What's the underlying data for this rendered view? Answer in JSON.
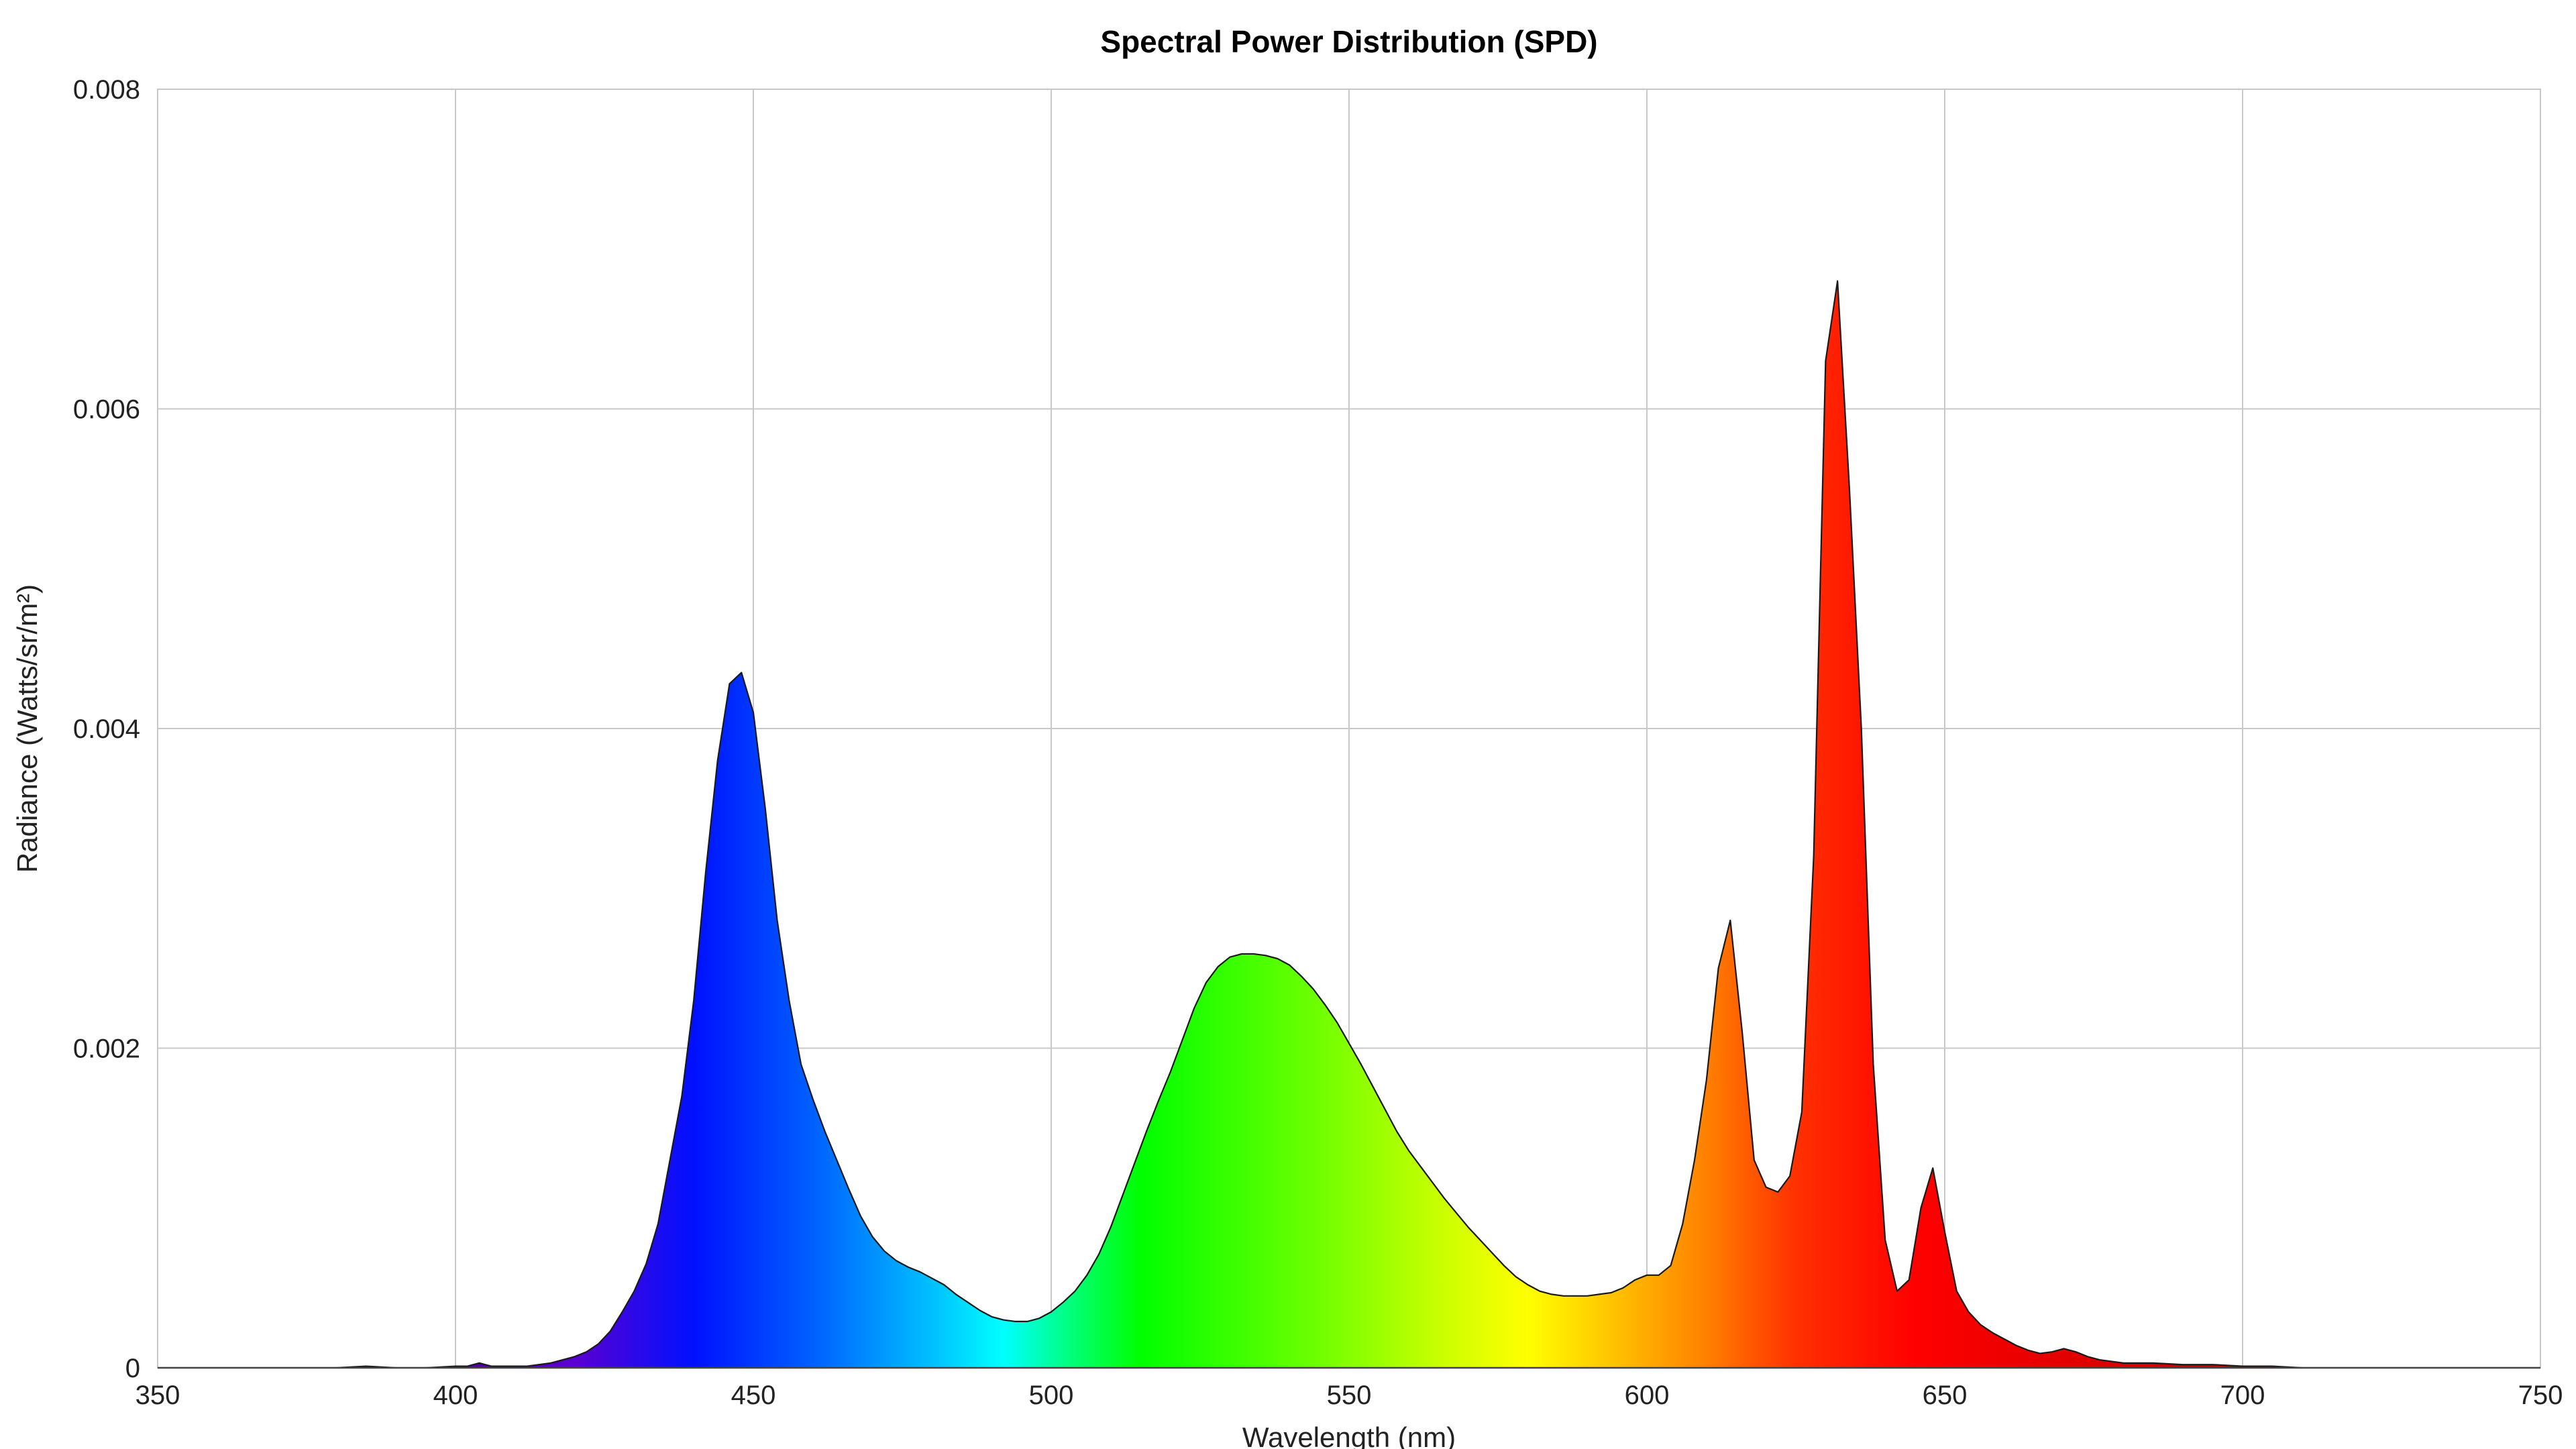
{
  "chart_data": {
    "type": "area",
    "title": "Spectral Power Distribution (SPD)",
    "xlabel": "Wavelength (nm)",
    "ylabel": "Radiance (Watts/sr/m²)",
    "xlim": [
      350,
      750
    ],
    "ylim": [
      0,
      0.008
    ],
    "x_ticks": [
      350,
      400,
      450,
      500,
      550,
      600,
      650,
      700,
      750
    ],
    "x_tick_labels": [
      "350",
      "400",
      "450",
      "500",
      "550",
      "600",
      "650",
      "700",
      "750"
    ],
    "y_ticks": [
      0,
      0.002,
      0.004,
      0.006,
      0.008
    ],
    "y_tick_labels": [
      "0",
      "0.002",
      "0.004",
      "0.006",
      "0.008"
    ],
    "grid": true,
    "fill": "wavelength-spectrum-gradient",
    "outline_color": "#1a1a1a",
    "series": [
      {
        "x": [
          350,
          370,
          380,
          385,
          390,
          395,
          400,
          402,
          404,
          406,
          408,
          410,
          412,
          414,
          416,
          418,
          420,
          422,
          424,
          426,
          428,
          430,
          432,
          434,
          436,
          438,
          440,
          442,
          444,
          446,
          448,
          450,
          452,
          454,
          456,
          458,
          460,
          462,
          464,
          466,
          468,
          470,
          472,
          474,
          476,
          478,
          480,
          482,
          484,
          486,
          488,
          490,
          492,
          494,
          496,
          498,
          500,
          502,
          504,
          506,
          508,
          510,
          512,
          514,
          516,
          518,
          520,
          522,
          524,
          526,
          528,
          530,
          532,
          534,
          536,
          538,
          540,
          542,
          544,
          546,
          548,
          550,
          552,
          554,
          556,
          558,
          560,
          562,
          564,
          566,
          568,
          570,
          572,
          574,
          576,
          578,
          580,
          582,
          584,
          586,
          588,
          590,
          592,
          594,
          596,
          598,
          600,
          602,
          604,
          606,
          608,
          610,
          612,
          614,
          616,
          618,
          620,
          622,
          624,
          626,
          628,
          630,
          632,
          634,
          636,
          638,
          640,
          642,
          644,
          646,
          648,
          650,
          652,
          654,
          656,
          658,
          660,
          662,
          664,
          666,
          668,
          670,
          672,
          674,
          676,
          678,
          680,
          685,
          690,
          695,
          700,
          705,
          710,
          720,
          730,
          740,
          750
        ],
        "y": [
          0.0,
          0.0,
          0.0,
          1e-05,
          0.0,
          0.0,
          1e-05,
          1e-05,
          3e-05,
          1e-05,
          1e-05,
          1e-05,
          1e-05,
          2e-05,
          3e-05,
          5e-05,
          7e-05,
          0.0001,
          0.00015,
          0.00023,
          0.00035,
          0.00048,
          0.00065,
          0.0009,
          0.0013,
          0.0017,
          0.0023,
          0.0031,
          0.0038,
          0.00428,
          0.00435,
          0.0041,
          0.0035,
          0.0028,
          0.0023,
          0.0019,
          0.00168,
          0.00148,
          0.0013,
          0.00112,
          0.00095,
          0.00082,
          0.00073,
          0.00067,
          0.00063,
          0.0006,
          0.00056,
          0.00052,
          0.00046,
          0.00041,
          0.00036,
          0.00032,
          0.0003,
          0.00029,
          0.00029,
          0.00031,
          0.00035,
          0.00041,
          0.00048,
          0.00058,
          0.00071,
          0.00088,
          0.00108,
          0.00128,
          0.00148,
          0.00167,
          0.00185,
          0.00205,
          0.00225,
          0.00241,
          0.00251,
          0.00257,
          0.00259,
          0.00259,
          0.00258,
          0.00256,
          0.00252,
          0.00245,
          0.00237,
          0.00227,
          0.00216,
          0.00203,
          0.0019,
          0.00176,
          0.00162,
          0.00148,
          0.00136,
          0.00126,
          0.00116,
          0.00106,
          0.00097,
          0.00088,
          0.0008,
          0.00072,
          0.00064,
          0.00057,
          0.00052,
          0.00048,
          0.00046,
          0.00045,
          0.00045,
          0.00045,
          0.00046,
          0.00047,
          0.0005,
          0.00055,
          0.00058,
          0.00058,
          0.00064,
          0.0009,
          0.0013,
          0.0018,
          0.0025,
          0.0028,
          0.0021,
          0.0013,
          0.00113,
          0.0011,
          0.0012,
          0.0016,
          0.0032,
          0.0063,
          0.0068,
          0.0055,
          0.004,
          0.0019,
          0.0008,
          0.00048,
          0.00055,
          0.001,
          0.00125,
          0.00085,
          0.00048,
          0.00035,
          0.00027,
          0.00022,
          0.00018,
          0.00014,
          0.00011,
          9e-05,
          0.0001,
          0.00012,
          0.0001,
          7e-05,
          5e-05,
          4e-05,
          3e-05,
          3e-05,
          2e-05,
          2e-05,
          1e-05,
          1e-05,
          0.0,
          0.0,
          0.0,
          0.0,
          0.0
        ]
      }
    ]
  }
}
